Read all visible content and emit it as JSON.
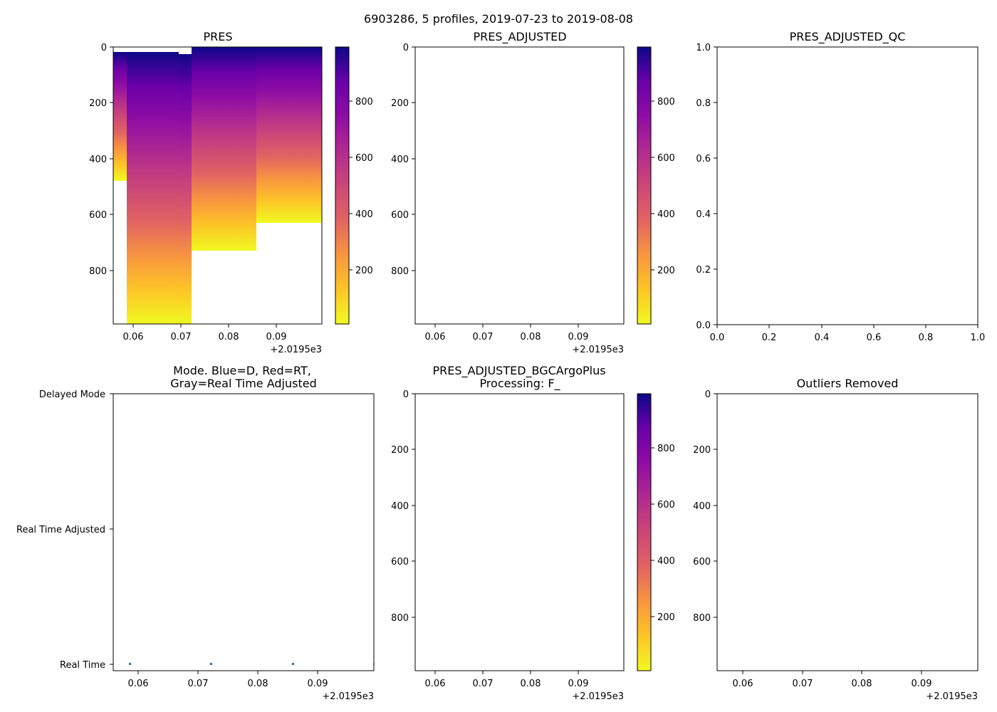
{
  "figure": {
    "suptitle": "6903286, 5 profiles, 2019-07-23 to 2019-08-08"
  },
  "chart_data": [
    {
      "id": "pres",
      "type": "heatmap",
      "title": "PRES",
      "x_ticks": [
        "0.06",
        "0.07",
        "0.08",
        "0.09"
      ],
      "x_offset": "+2.0195e3",
      "y_ticks": [
        "0",
        "200",
        "400",
        "600",
        "800"
      ],
      "xlim": [
        0.0556,
        0.0995
      ],
      "ylim": [
        990,
        0
      ],
      "colormap": "plasma_r",
      "colorbar": {
        "range": [
          0,
          990
        ],
        "ticks": [
          "200",
          "400",
          "600",
          "800"
        ]
      },
      "profiles": [
        {
          "x0": 0.0556,
          "x1": 0.0585,
          "top": 18,
          "bottom": 480
        },
        {
          "x0": 0.0585,
          "x1": 0.0692,
          "top": 18,
          "bottom": 990
        },
        {
          "x0": 0.0692,
          "x1": 0.0721,
          "top": 26,
          "bottom": 990
        },
        {
          "x0": 0.0721,
          "x1": 0.0857,
          "top": 0,
          "bottom": 725
        },
        {
          "x0": 0.0857,
          "x1": 0.0995,
          "top": 0,
          "bottom": 625
        }
      ]
    },
    {
      "id": "pres-adjusted",
      "type": "heatmap",
      "title": "PRES_ADJUSTED",
      "x_ticks": [
        "0.06",
        "0.07",
        "0.08",
        "0.09"
      ],
      "x_offset": "+2.0195e3",
      "y_ticks": [
        "0",
        "200",
        "400",
        "600",
        "800"
      ],
      "colormap": "plasma_r",
      "colorbar": {
        "range": [
          0,
          990
        ],
        "ticks": [
          "200",
          "400",
          "600",
          "800"
        ]
      }
    },
    {
      "id": "pres-adjusted-qc",
      "type": "scatter",
      "title": "PRES_ADJUSTED_QC",
      "x_ticks": [
        "0.0",
        "0.2",
        "0.4",
        "0.6",
        "0.8",
        "1.0"
      ],
      "y_ticks": [
        "0.0",
        "0.2",
        "0.4",
        "0.6",
        "0.8",
        "1.0"
      ],
      "xlim": [
        0,
        1
      ],
      "ylim": [
        0,
        1
      ]
    },
    {
      "id": "mode",
      "type": "scatter",
      "title_line1": "Mode. Blue=D, Red=RT,",
      "title_line2": "Gray=Real Time Adjusted",
      "x_ticks": [
        "0.06",
        "0.07",
        "0.08",
        "0.09"
      ],
      "x_offset": "+2.0195e3",
      "y_categories": [
        "Delayed Mode",
        "Real Time Adjusted",
        "Real Time"
      ],
      "points": [
        {
          "x": 0.0585,
          "y": "Real Time"
        },
        {
          "x": 0.0721,
          "y": "Real Time"
        },
        {
          "x": 0.0857,
          "y": "Real Time"
        },
        {
          "x": 0.0995,
          "y": "Real Time"
        }
      ],
      "point_color": "#1f77b4"
    },
    {
      "id": "pres-adjusted-bgc",
      "type": "heatmap",
      "title_line1": "PRES_ADJUSTED_BGCArgoPlus",
      "title_line2": "Processing: F_",
      "x_ticks": [
        "0.06",
        "0.07",
        "0.08",
        "0.09"
      ],
      "x_offset": "+2.0195e3",
      "y_ticks": [
        "0",
        "200",
        "400",
        "600",
        "800"
      ],
      "colormap": "plasma_r",
      "colorbar": {
        "range": [
          0,
          990
        ],
        "ticks": [
          "200",
          "400",
          "600",
          "800"
        ]
      }
    },
    {
      "id": "outliers",
      "type": "scatter",
      "title": "Outliers Removed",
      "x_ticks": [
        "0.06",
        "0.07",
        "0.08",
        "0.09"
      ],
      "x_offset": "+2.0195e3",
      "y_ticks": [
        "0",
        "200",
        "400",
        "600",
        "800"
      ]
    }
  ]
}
